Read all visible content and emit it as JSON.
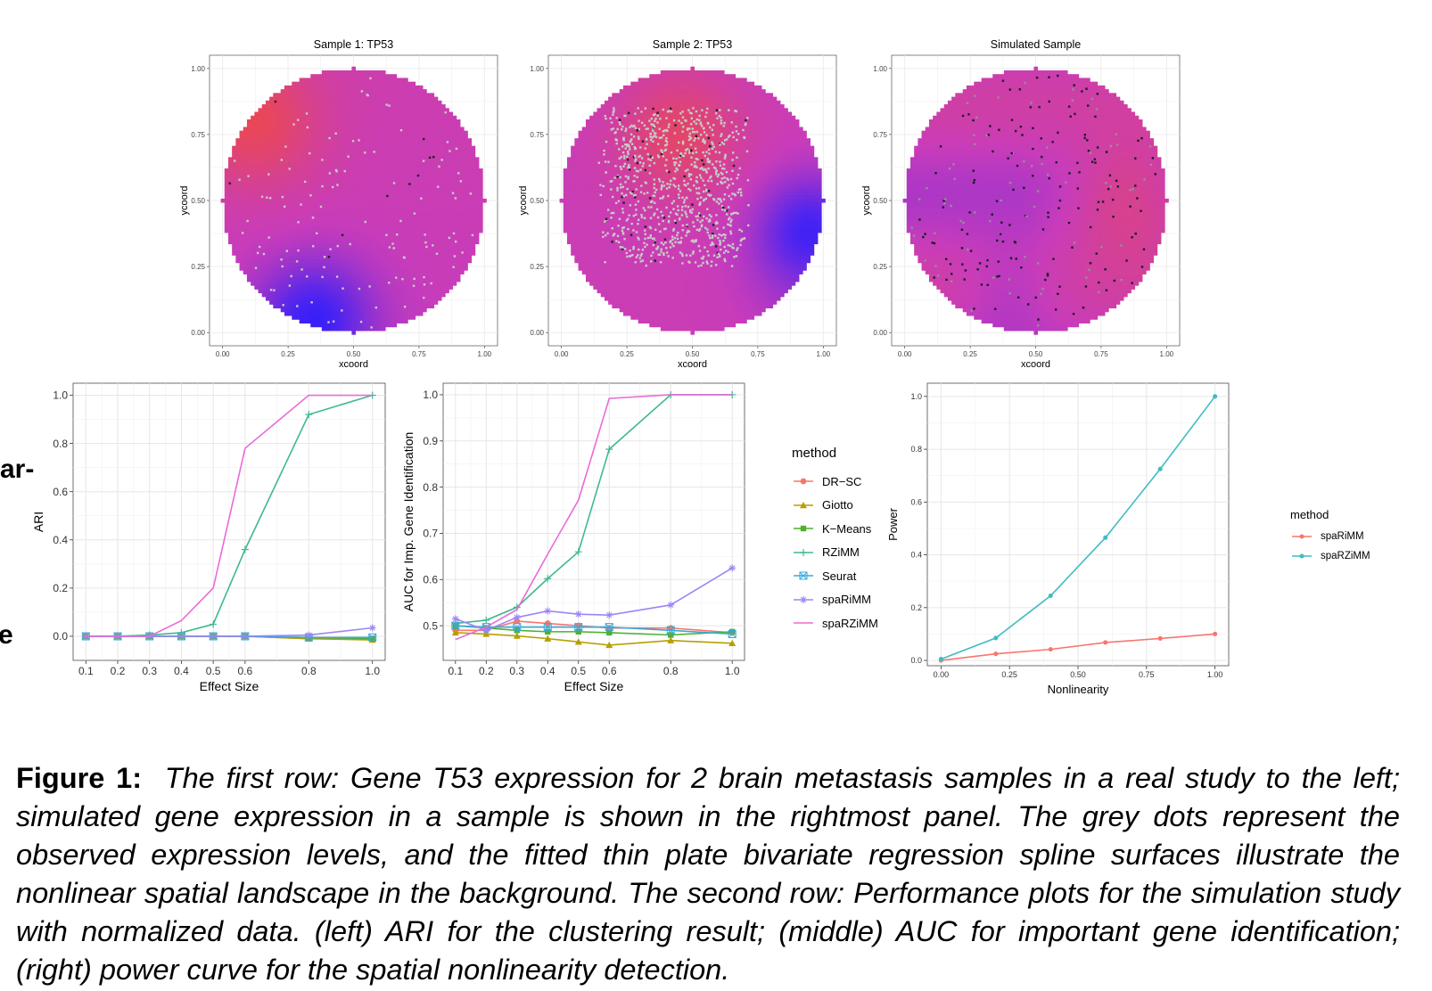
{
  "stray_text": [
    "ar-",
    "e"
  ],
  "colors": {
    "surface_low": "#2a1dff",
    "surface_mid": "#c83cba",
    "surface_high": "#f24a3c",
    "grid": "#ebebeb",
    "dot_grey": "#c9c9c9"
  },
  "spatial_panels": [
    {
      "title": "Sample 1: TP53",
      "xlabel": "xcoord",
      "ylabel": "ycoord",
      "x_ticks": [
        "0.00",
        "0.25",
        "0.50",
        "0.75",
        "1.00"
      ],
      "y_ticks": [
        "0.00",
        "0.25",
        "0.50",
        "0.75",
        "1.00"
      ],
      "pattern": "s1"
    },
    {
      "title": "Sample 2: TP53",
      "xlabel": "xcoord",
      "ylabel": "ycoord",
      "x_ticks": [
        "0.00",
        "0.25",
        "0.50",
        "0.75",
        "1.00"
      ],
      "y_ticks": [
        "0.00",
        "0.25",
        "0.50",
        "0.75",
        "1.00"
      ],
      "pattern": "s2"
    },
    {
      "title": "Simulated Sample",
      "xlabel": "xcoord",
      "ylabel": "ycoord",
      "x_ticks": [
        "0.00",
        "0.25",
        "0.50",
        "0.75",
        "1.00"
      ],
      "y_ticks": [
        "0.00",
        "0.25",
        "0.50",
        "0.75",
        "1.00"
      ],
      "pattern": "sim"
    }
  ],
  "chart_data": [
    {
      "type": "line",
      "xlabel": "Effect Size",
      "ylabel": "ARI",
      "x": [
        0.1,
        0.2,
        0.3,
        0.4,
        0.5,
        0.6,
        0.8,
        1.0
      ],
      "x_ticks": [
        "0.1",
        "0.2",
        "0.3",
        "0.4",
        "0.5",
        "0.6",
        "0.8",
        "1.0"
      ],
      "y_ticks": [
        "0.0",
        "0.2",
        "0.4",
        "0.6",
        "0.8",
        "1.0"
      ],
      "xlim": [
        0.06,
        1.04
      ],
      "ylim": [
        -0.1,
        1.05
      ],
      "series": [
        {
          "name": "DR−SC",
          "color": "#f8766d",
          "marker": "circle",
          "values": [
            0,
            0,
            0,
            0,
            0,
            0,
            -0.01,
            -0.01
          ]
        },
        {
          "name": "Giotto",
          "color": "#b79f00",
          "marker": "triangle",
          "values": [
            0,
            0,
            0,
            0,
            0,
            0,
            -0.01,
            -0.015
          ]
        },
        {
          "name": "K−Means",
          "color": "#4fb032",
          "marker": "square",
          "values": [
            0,
            0,
            0,
            0,
            0,
            0,
            -0.005,
            -0.01
          ]
        },
        {
          "name": "RZiMM",
          "color": "#3fb98f",
          "marker": "plus",
          "values": [
            0,
            0,
            0.005,
            0.015,
            0.05,
            0.36,
            0.92,
            1.0
          ]
        },
        {
          "name": "Seurat",
          "color": "#3ba8db",
          "marker": "boxx",
          "values": [
            0,
            0,
            0,
            0,
            0,
            0,
            -0.005,
            -0.005
          ]
        },
        {
          "name": "spaRiMM",
          "color": "#9e85f5",
          "marker": "star",
          "values": [
            0,
            0,
            0,
            0,
            0,
            0,
            0.005,
            0.035
          ]
        },
        {
          "name": "spaRZiMM",
          "color": "#e86bd8",
          "marker": "none",
          "values": [
            0,
            0,
            0,
            0.065,
            0.2,
            0.78,
            1.0,
            1.0
          ]
        }
      ]
    },
    {
      "type": "line",
      "xlabel": "Effect Size",
      "ylabel": "AUC for Imp. Gene Identification",
      "x": [
        0.1,
        0.2,
        0.3,
        0.4,
        0.5,
        0.6,
        0.8,
        1.0
      ],
      "x_ticks": [
        "0.1",
        "0.2",
        "0.3",
        "0.4",
        "0.5",
        "0.6",
        "0.8",
        "1.0"
      ],
      "y_ticks": [
        "0.5",
        "0.6",
        "0.7",
        "0.8",
        "0.9",
        "1.0"
      ],
      "xlim": [
        0.06,
        1.04
      ],
      "ylim": [
        0.425,
        1.025
      ],
      "series": [
        {
          "name": "DR−SC",
          "color": "#f8766d",
          "marker": "circle",
          "values": [
            0.49,
            0.49,
            0.51,
            0.505,
            0.5,
            0.495,
            0.495,
            0.485
          ]
        },
        {
          "name": "Giotto",
          "color": "#b79f00",
          "marker": "triangle",
          "values": [
            0.485,
            0.482,
            0.478,
            0.472,
            0.465,
            0.458,
            0.468,
            0.462
          ]
        },
        {
          "name": "K−Means",
          "color": "#4fb032",
          "marker": "square",
          "values": [
            0.5,
            0.495,
            0.49,
            0.487,
            0.487,
            0.485,
            0.48,
            0.487
          ]
        },
        {
          "name": "RZiMM",
          "color": "#3fb98f",
          "marker": "plus",
          "values": [
            0.505,
            0.512,
            0.54,
            0.602,
            0.66,
            0.882,
            1.0,
            1.0
          ]
        },
        {
          "name": "Seurat",
          "color": "#3ba8db",
          "marker": "boxx",
          "values": [
            0.5,
            0.497,
            0.497,
            0.497,
            0.497,
            0.497,
            0.49,
            0.482
          ]
        },
        {
          "name": "spaRiMM",
          "color": "#9e85f5",
          "marker": "star",
          "values": [
            0.515,
            0.49,
            0.518,
            0.532,
            0.525,
            0.523,
            0.545,
            0.625
          ]
        },
        {
          "name": "spaRZiMM",
          "color": "#e86bd8",
          "marker": "none",
          "values": [
            0.47,
            0.497,
            0.535,
            0.655,
            0.772,
            0.992,
            1.0,
            1.0
          ]
        }
      ]
    },
    {
      "type": "line",
      "xlabel": "Nonlinearity",
      "ylabel": "Power",
      "x": [
        0.0,
        0.2,
        0.4,
        0.6,
        0.8,
        1.0
      ],
      "x_ticks": [
        "0.00",
        "0.25",
        "0.50",
        "0.75",
        "1.00"
      ],
      "x_tick_values": [
        0,
        0.25,
        0.5,
        0.75,
        1.0
      ],
      "y_ticks": [
        "0.0",
        "0.2",
        "0.4",
        "0.6",
        "0.8",
        "1.0"
      ],
      "xlim": [
        -0.05,
        1.05
      ],
      "ylim": [
        -0.02,
        1.05
      ],
      "series": [
        {
          "name": "spaRiMM",
          "color": "#f8766d",
          "marker": "dot",
          "values": [
            0.0,
            0.025,
            0.042,
            0.068,
            0.083,
            0.1
          ]
        },
        {
          "name": "spaRZiMM",
          "color": "#3fbcc4",
          "marker": "dot",
          "values": [
            0.005,
            0.085,
            0.245,
            0.465,
            0.725,
            1.0
          ]
        }
      ]
    }
  ],
  "legends": [
    {
      "title": "method",
      "items": [
        {
          "name": "DR−SC",
          "color": "#f8766d",
          "marker": "circle"
        },
        {
          "name": "Giotto",
          "color": "#b79f00",
          "marker": "triangle"
        },
        {
          "name": "K−Means",
          "color": "#4fb032",
          "marker": "square"
        },
        {
          "name": "RZiMM",
          "color": "#3fb98f",
          "marker": "plus"
        },
        {
          "name": "Seurat",
          "color": "#3ba8db",
          "marker": "boxx"
        },
        {
          "name": "spaRiMM",
          "color": "#9e85f5",
          "marker": "star"
        },
        {
          "name": "spaRZiMM",
          "color": "#e86bd8",
          "marker": "none"
        }
      ]
    },
    {
      "title": "method",
      "items": [
        {
          "name": "spaRiMM",
          "color": "#f8766d",
          "marker": "dot"
        },
        {
          "name": "spaRZiMM",
          "color": "#3fbcc4",
          "marker": "dot"
        }
      ]
    }
  ],
  "caption": {
    "label": "Figure 1:",
    "text": "The first row: Gene T53 expression for 2 brain metastasis samples in a real study to the left; simulated gene expression in a sample is shown in the rightmost panel. The grey dots represent the observed expression levels, and the fitted thin plate bivariate regression spline surfaces illustrate the nonlinear spatial landscape in the background. The second row: Performance plots for the simulation study with normalized data. (left) ARI for the clustering result; (middle) AUC for important gene identification; (right) power curve for the spatial nonlinearity detection."
  }
}
